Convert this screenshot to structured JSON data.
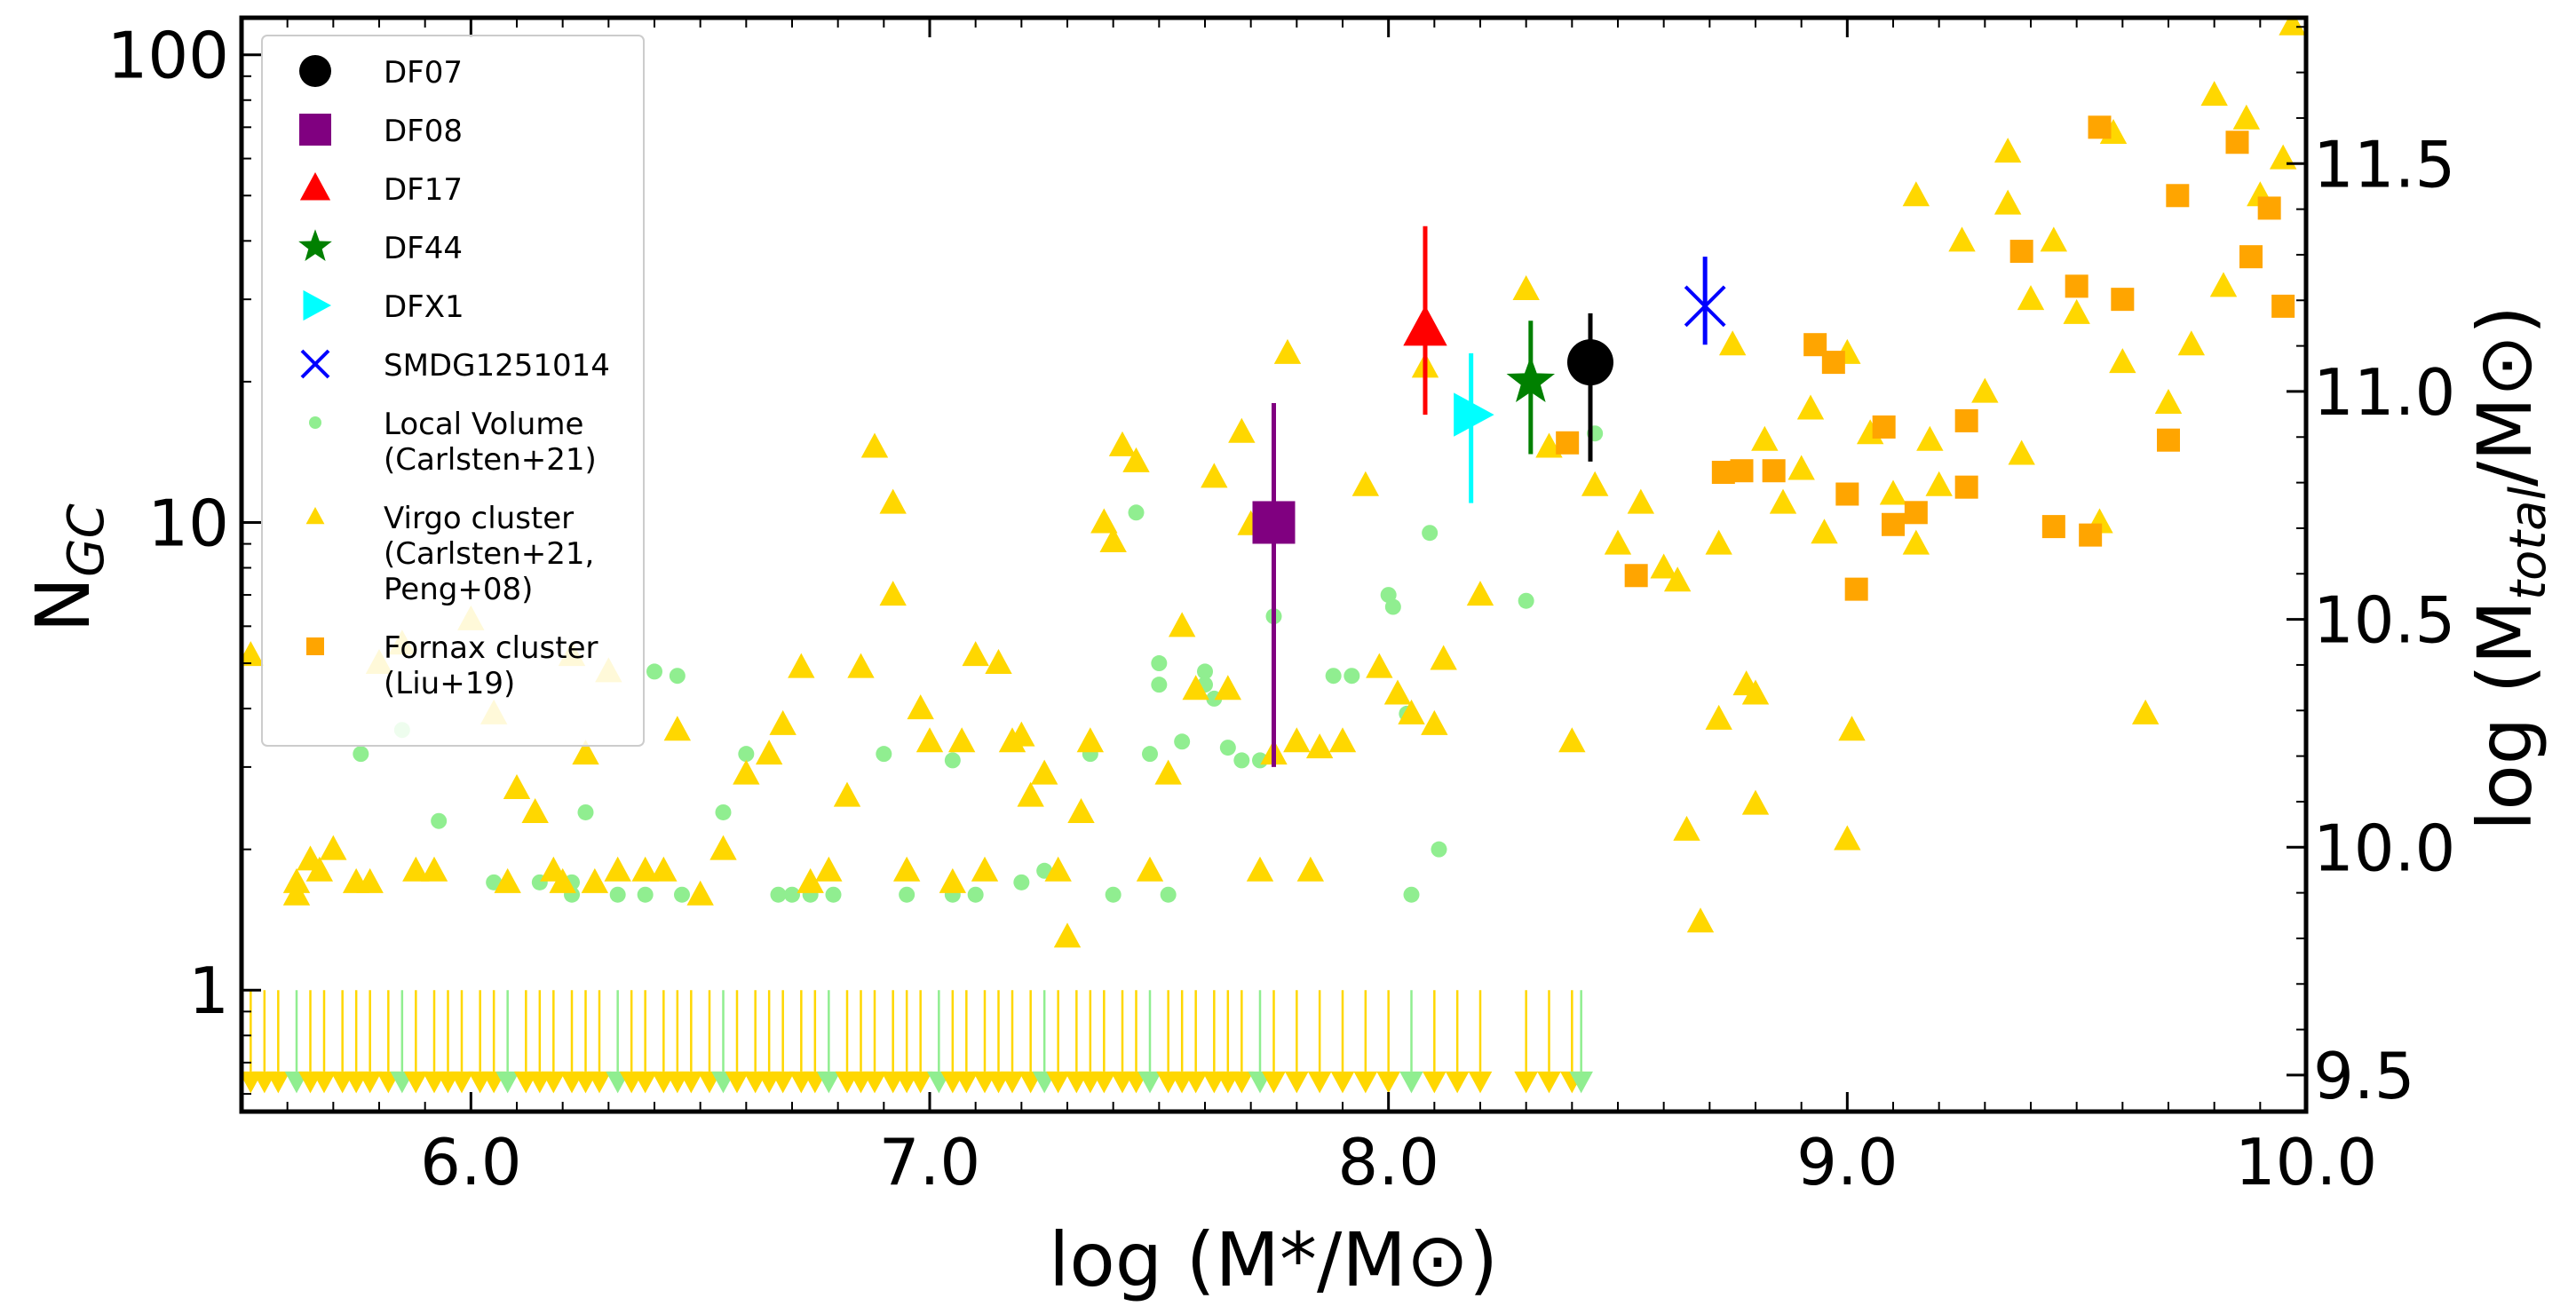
{
  "chart_data": {
    "type": "scatter",
    "xlabel": "log (M*/M⊙)",
    "ylabel": "N",
    "ylabel_sub": "GC",
    "y2label": "log (M",
    "y2label_sub": "total",
    "y2label_end": "/M⊙)",
    "xlim": [
      5.5,
      10.0
    ],
    "ylim": [
      0.55,
      120
    ],
    "yscale": "log",
    "y2lim": [
      9.42,
      11.82
    ],
    "x_ticks": [
      6.0,
      7.0,
      8.0,
      9.0,
      10.0
    ],
    "x_tick_labels": [
      "6.0",
      "7.0",
      "8.0",
      "9.0",
      "10.0"
    ],
    "y_ticks": [
      1,
      10,
      100
    ],
    "y_tick_labels": [
      "1",
      "10",
      "100"
    ],
    "y2_ticks": [
      9.5,
      10.0,
      10.5,
      11.0,
      11.5
    ],
    "y2_tick_labels": [
      "9.5",
      "10.0",
      "10.5",
      "11.0",
      "11.5"
    ],
    "legend_position": "top-left",
    "colors": {
      "DF07": "#000000",
      "DF08": "#800080",
      "DF17": "#ff0000",
      "DF44": "#008000",
      "DFX1": "#00ffff",
      "SMDG": "#0000ff",
      "local": "#90ee90",
      "virgo": "#ffd700",
      "fornax": "#ffa500"
    },
    "highlighted": [
      {
        "name": "DF07",
        "x": 8.44,
        "y": 22,
        "yerr_low": 13.5,
        "yerr_high": 28,
        "marker": "circle",
        "color": "#000000"
      },
      {
        "name": "DF08",
        "x": 7.75,
        "y": 10,
        "yerr_low": 3,
        "yerr_high": 18,
        "marker": "square",
        "color": "#800080"
      },
      {
        "name": "DF17",
        "x": 8.08,
        "y": 26,
        "yerr_low": 17,
        "yerr_high": 43,
        "marker": "triangle-up",
        "color": "#ff0000"
      },
      {
        "name": "DF44",
        "x": 8.31,
        "y": 20,
        "yerr_low": 14,
        "yerr_high": 27,
        "marker": "star",
        "color": "#008000"
      },
      {
        "name": "DFX1",
        "x": 8.18,
        "y": 17,
        "yerr_low": 11,
        "yerr_high": 23,
        "marker": "triangle-right",
        "color": "#00ffff"
      },
      {
        "name": "SMDG1251014",
        "x": 8.69,
        "y": 29,
        "yerr_low": 24,
        "yerr_high": 37,
        "marker": "x",
        "color": "#0000ff"
      }
    ],
    "legend": [
      {
        "label": "DF07",
        "marker": "circle",
        "color": "#000000"
      },
      {
        "label": "DF08",
        "marker": "square",
        "color": "#800080"
      },
      {
        "label": "DF17",
        "marker": "triangle-up",
        "color": "#ff0000"
      },
      {
        "label": "DF44",
        "marker": "star",
        "color": "#008000"
      },
      {
        "label": "DFX1",
        "marker": "triangle-right",
        "color": "#00ffff"
      },
      {
        "label": "SMDG1251014",
        "marker": "x",
        "color": "#0000ff"
      },
      {
        "label": "Local Volume",
        "label2": "(Carlsten+21)",
        "marker": "small-circle",
        "color": "#90ee90"
      },
      {
        "label": "Virgo cluster",
        "label2": "(Carlsten+21,",
        "label3": "Peng+08)",
        "marker": "small-triangle",
        "color": "#ffd700"
      },
      {
        "label": "Fornax cluster",
        "label2": "(Liu+19)",
        "marker": "small-square",
        "color": "#ffa500"
      }
    ],
    "series": [
      {
        "name": "Local Volume (Carlsten+21)",
        "marker": "circle",
        "color": "#90ee90",
        "points": [
          [
            5.76,
            3.2
          ],
          [
            5.85,
            3.6
          ],
          [
            5.93,
            2.3
          ],
          [
            6.05,
            1.7
          ],
          [
            6.15,
            1.7
          ],
          [
            6.22,
            1.7
          ],
          [
            6.22,
            1.6
          ],
          [
            6.25,
            2.4
          ],
          [
            6.32,
            1.6
          ],
          [
            6.38,
            1.6
          ],
          [
            6.4,
            4.8
          ],
          [
            6.45,
            4.7
          ],
          [
            6.46,
            1.6
          ],
          [
            6.55,
            2.4
          ],
          [
            6.6,
            3.2
          ],
          [
            6.67,
            1.6
          ],
          [
            6.7,
            1.6
          ],
          [
            6.74,
            1.6
          ],
          [
            6.79,
            1.6
          ],
          [
            6.9,
            3.2
          ],
          [
            6.95,
            1.6
          ],
          [
            7.05,
            3.1
          ],
          [
            7.05,
            1.6
          ],
          [
            7.1,
            1.6
          ],
          [
            7.2,
            1.7
          ],
          [
            7.25,
            1.8
          ],
          [
            7.35,
            3.2
          ],
          [
            7.4,
            1.6
          ],
          [
            7.45,
            10.5
          ],
          [
            7.48,
            3.2
          ],
          [
            7.5,
            5.0
          ],
          [
            7.5,
            4.5
          ],
          [
            7.52,
            1.6
          ],
          [
            7.55,
            3.4
          ],
          [
            7.6,
            4.8
          ],
          [
            7.6,
            4.5
          ],
          [
            7.62,
            4.2
          ],
          [
            7.65,
            3.3
          ],
          [
            7.68,
            3.1
          ],
          [
            7.72,
            3.1
          ],
          [
            7.75,
            6.3
          ],
          [
            7.88,
            4.7
          ],
          [
            7.92,
            4.7
          ],
          [
            8.0,
            7.0
          ],
          [
            8.01,
            6.6
          ],
          [
            8.04,
            3.9
          ],
          [
            8.05,
            1.6
          ],
          [
            8.09,
            9.5
          ],
          [
            8.11,
            2.0
          ],
          [
            8.3,
            6.8
          ],
          [
            8.45,
            15.5
          ]
        ]
      },
      {
        "name": "Virgo cluster (Carlsten+21, Peng+08)",
        "marker": "triangle",
        "color": "#ffd700",
        "points": [
          [
            5.52,
            5.2
          ],
          [
            5.62,
            1.7
          ],
          [
            5.62,
            1.6
          ],
          [
            5.65,
            1.9
          ],
          [
            5.67,
            1.8
          ],
          [
            5.7,
            2.0
          ],
          [
            5.75,
            1.7
          ],
          [
            5.78,
            1.7
          ],
          [
            5.8,
            5.0
          ],
          [
            5.85,
            5.5
          ],
          [
            5.88,
            1.8
          ],
          [
            5.92,
            1.8
          ],
          [
            6.0,
            6.2
          ],
          [
            6.05,
            3.9
          ],
          [
            6.08,
            1.7
          ],
          [
            6.1,
            2.7
          ],
          [
            6.14,
            2.4
          ],
          [
            6.18,
            1.8
          ],
          [
            6.2,
            1.7
          ],
          [
            6.22,
            5.2
          ],
          [
            6.25,
            3.2
          ],
          [
            6.27,
            1.7
          ],
          [
            6.3,
            4.8
          ],
          [
            6.32,
            1.8
          ],
          [
            6.38,
            1.8
          ],
          [
            6.42,
            1.8
          ],
          [
            6.45,
            3.6
          ],
          [
            6.5,
            1.6
          ],
          [
            6.55,
            2.0
          ],
          [
            6.6,
            2.9
          ],
          [
            6.65,
            3.2
          ],
          [
            6.68,
            3.7
          ],
          [
            6.72,
            4.9
          ],
          [
            6.74,
            1.7
          ],
          [
            6.78,
            1.8
          ],
          [
            6.82,
            2.6
          ],
          [
            6.85,
            4.9
          ],
          [
            6.88,
            14.5
          ],
          [
            6.92,
            7.0
          ],
          [
            6.92,
            11.0
          ],
          [
            6.95,
            1.8
          ],
          [
            6.98,
            4.0
          ],
          [
            7.0,
            3.4
          ],
          [
            7.05,
            1.7
          ],
          [
            7.07,
            3.4
          ],
          [
            7.1,
            5.2
          ],
          [
            7.12,
            1.8
          ],
          [
            7.15,
            5.0
          ],
          [
            7.18,
            3.4
          ],
          [
            7.2,
            3.5
          ],
          [
            7.22,
            2.6
          ],
          [
            7.25,
            2.9
          ],
          [
            7.28,
            1.8
          ],
          [
            7.3,
            1.3
          ],
          [
            7.33,
            2.4
          ],
          [
            7.35,
            3.4
          ],
          [
            7.38,
            10.0
          ],
          [
            7.4,
            9.1
          ],
          [
            7.42,
            14.6
          ],
          [
            7.45,
            13.5
          ],
          [
            7.48,
            1.8
          ],
          [
            7.52,
            2.9
          ],
          [
            7.55,
            6.0
          ],
          [
            7.58,
            4.4
          ],
          [
            7.62,
            12.5
          ],
          [
            7.65,
            4.4
          ],
          [
            7.68,
            15.6
          ],
          [
            7.7,
            9.9
          ],
          [
            7.72,
            1.8
          ],
          [
            7.75,
            3.2
          ],
          [
            7.78,
            23.0
          ],
          [
            7.8,
            3.4
          ],
          [
            7.83,
            1.8
          ],
          [
            7.85,
            3.3
          ],
          [
            7.9,
            3.4
          ],
          [
            7.95,
            12.0
          ],
          [
            7.98,
            4.9
          ],
          [
            8.02,
            4.3
          ],
          [
            8.05,
            3.9
          ],
          [
            8.08,
            21.5
          ],
          [
            8.1,
            3.7
          ],
          [
            8.12,
            5.1
          ],
          [
            8.2,
            7.0
          ],
          [
            8.3,
            31.5
          ],
          [
            8.35,
            14.5
          ],
          [
            8.4,
            3.4
          ],
          [
            8.45,
            12.0
          ],
          [
            8.5,
            9.0
          ],
          [
            8.55,
            11.0
          ],
          [
            8.6,
            8.0
          ],
          [
            8.63,
            7.5
          ],
          [
            8.65,
            2.2
          ],
          [
            8.68,
            1.4
          ],
          [
            8.72,
            9.0
          ],
          [
            8.72,
            3.8
          ],
          [
            8.75,
            24.0
          ],
          [
            8.78,
            4.5
          ],
          [
            8.8,
            4.3
          ],
          [
            8.8,
            2.5
          ],
          [
            8.82,
            15.0
          ],
          [
            8.86,
            11.0
          ],
          [
            8.9,
            13.0
          ],
          [
            8.92,
            17.5
          ],
          [
            8.95,
            9.5
          ],
          [
            9.0,
            23.0
          ],
          [
            9.0,
            2.1
          ],
          [
            9.01,
            3.6
          ],
          [
            9.05,
            15.5
          ],
          [
            9.1,
            11.5
          ],
          [
            9.15,
            50.0
          ],
          [
            9.15,
            9.0
          ],
          [
            9.18,
            15.0
          ],
          [
            9.2,
            12.0
          ],
          [
            9.25,
            40.0
          ],
          [
            9.3,
            19.0
          ],
          [
            9.35,
            48.0
          ],
          [
            9.35,
            62.0
          ],
          [
            9.38,
            14.0
          ],
          [
            9.4,
            30.0
          ],
          [
            9.45,
            40.0
          ],
          [
            9.5,
            28.0
          ],
          [
            9.55,
            10.0
          ],
          [
            9.58,
            68.0
          ],
          [
            9.6,
            22.0
          ],
          [
            9.65,
            3.9
          ],
          [
            9.7,
            18.0
          ],
          [
            9.75,
            24.0
          ],
          [
            9.8,
            82.0
          ],
          [
            9.82,
            32.0
          ],
          [
            9.87,
            73.0
          ],
          [
            9.9,
            50.0
          ],
          [
            9.95,
            60.0
          ],
          [
            9.97,
            116.0
          ]
        ]
      },
      {
        "name": "Fornax cluster (Liu+19)",
        "marker": "square",
        "color": "#ffa500",
        "points": [
          [
            8.39,
            14.8
          ],
          [
            8.54,
            7.7
          ],
          [
            8.73,
            12.8
          ],
          [
            8.77,
            12.9
          ],
          [
            8.84,
            12.9
          ],
          [
            8.93,
            24.0
          ],
          [
            8.97,
            22.0
          ],
          [
            9.0,
            11.5
          ],
          [
            9.02,
            7.2
          ],
          [
            9.08,
            16.0
          ],
          [
            9.1,
            9.9
          ],
          [
            9.15,
            10.5
          ],
          [
            9.26,
            11.9
          ],
          [
            9.26,
            16.5
          ],
          [
            9.38,
            38.0
          ],
          [
            9.45,
            9.8
          ],
          [
            9.5,
            32.0
          ],
          [
            9.53,
            9.4
          ],
          [
            9.55,
            70.0
          ],
          [
            9.6,
            30.0
          ],
          [
            9.7,
            15.0
          ],
          [
            9.72,
            50.0
          ],
          [
            9.85,
            65.0
          ],
          [
            9.88,
            37.0
          ],
          [
            9.92,
            47.0
          ],
          [
            9.95,
            29.0
          ]
        ]
      },
      {
        "name": "Upper limits",
        "marker": "triangle-down",
        "color": "#ffd700",
        "x_values": [
          5.52,
          5.55,
          5.58,
          5.62,
          5.65,
          5.68,
          5.72,
          5.75,
          5.78,
          5.82,
          5.85,
          5.88,
          5.92,
          5.95,
          5.98,
          6.02,
          6.05,
          6.08,
          6.12,
          6.15,
          6.18,
          6.22,
          6.25,
          6.28,
          6.32,
          6.35,
          6.38,
          6.42,
          6.45,
          6.48,
          6.52,
          6.55,
          6.58,
          6.62,
          6.65,
          6.68,
          6.72,
          6.75,
          6.78,
          6.82,
          6.85,
          6.88,
          6.92,
          6.95,
          6.98,
          7.02,
          7.05,
          7.08,
          7.12,
          7.15,
          7.18,
          7.22,
          7.25,
          7.28,
          7.32,
          7.35,
          7.38,
          7.42,
          7.45,
          7.48,
          7.52,
          7.55,
          7.58,
          7.62,
          7.65,
          7.68,
          7.72,
          7.75,
          7.8,
          7.85,
          7.9,
          7.95,
          8.0,
          8.05,
          8.1,
          8.15,
          8.2,
          8.3,
          8.35,
          8.4,
          8.42
        ]
      }
    ]
  }
}
